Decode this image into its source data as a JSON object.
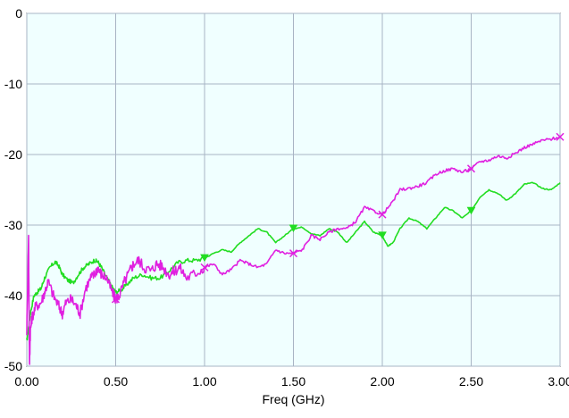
{
  "chart_data": {
    "type": "line",
    "title": "",
    "xlabel": "Freq (GHz)",
    "ylabel": "",
    "xlim": [
      0,
      3.0
    ],
    "ylim": [
      -50,
      0
    ],
    "x_ticks": [
      0,
      0.5,
      1.0,
      1.5,
      2.0,
      2.5,
      3.0
    ],
    "x_tick_labels": [
      "0.00",
      "0.50",
      "1.00",
      "1.50",
      "2.00",
      "2.50",
      "3.00"
    ],
    "y_ticks": [
      0,
      -10,
      -20,
      -30,
      -40,
      -50
    ],
    "y_tick_labels": [
      "0",
      "-10",
      "-20",
      "-30",
      "-40",
      "-50"
    ],
    "grid": true,
    "plot_background": "#f0ffff",
    "grid_color": "#a8b4c4",
    "series": [
      {
        "color": "#22dd22",
        "marker": "triangle-down",
        "marker_x": [
          1.0,
          1.5,
          2.0,
          2.5
        ],
        "x": [
          0.0,
          0.01,
          0.02,
          0.04,
          0.06,
          0.08,
          0.1,
          0.13,
          0.16,
          0.18,
          0.2,
          0.23,
          0.26,
          0.29,
          0.32,
          0.35,
          0.38,
          0.4,
          0.42,
          0.45,
          0.48,
          0.5,
          0.53,
          0.56,
          0.6,
          0.65,
          0.7,
          0.75,
          0.8,
          0.85,
          0.9,
          0.95,
          1.0,
          1.05,
          1.1,
          1.15,
          1.2,
          1.25,
          1.3,
          1.35,
          1.4,
          1.45,
          1.5,
          1.55,
          1.6,
          1.65,
          1.7,
          1.75,
          1.8,
          1.85,
          1.9,
          1.95,
          2.0,
          2.03,
          2.06,
          2.1,
          2.15,
          2.2,
          2.25,
          2.3,
          2.35,
          2.4,
          2.45,
          2.5,
          2.55,
          2.6,
          2.65,
          2.7,
          2.75,
          2.8,
          2.85,
          2.9,
          2.95,
          3.0
        ],
        "y": [
          -46.5,
          -44.5,
          -42.5,
          -40.0,
          -39.5,
          -39.0,
          -37.5,
          -36.0,
          -35.2,
          -35.8,
          -37.0,
          -37.8,
          -38.2,
          -37.0,
          -36.0,
          -35.5,
          -35.0,
          -35.2,
          -36.0,
          -37.5,
          -38.8,
          -39.5,
          -39.2,
          -38.5,
          -37.5,
          -37.0,
          -37.5,
          -37.5,
          -36.5,
          -35.3,
          -35.0,
          -35.0,
          -34.7,
          -34.0,
          -33.5,
          -33.8,
          -32.5,
          -31.5,
          -30.5,
          -31.0,
          -32.5,
          -31.5,
          -30.5,
          -30.3,
          -31.2,
          -31.5,
          -30.5,
          -31.0,
          -32.5,
          -31.0,
          -29.5,
          -31.0,
          -31.5,
          -33.0,
          -32.5,
          -30.5,
          -29.0,
          -29.5,
          -30.5,
          -29.0,
          -27.5,
          -28.0,
          -29.0,
          -28.0,
          -26.0,
          -25.0,
          -25.5,
          -26.5,
          -25.5,
          -24.2,
          -24.0,
          -24.8,
          -25.0,
          -24.0
        ]
      },
      {
        "color": "#e020e0",
        "marker": "x",
        "marker_x": [
          0.5,
          1.0,
          1.5,
          2.0,
          2.5,
          3.0
        ],
        "x": [
          0.0,
          0.01,
          0.015,
          0.02,
          0.03,
          0.05,
          0.08,
          0.1,
          0.12,
          0.15,
          0.18,
          0.2,
          0.22,
          0.25,
          0.28,
          0.3,
          0.33,
          0.36,
          0.38,
          0.4,
          0.42,
          0.45,
          0.48,
          0.5,
          0.52,
          0.55,
          0.58,
          0.6,
          0.63,
          0.66,
          0.7,
          0.73,
          0.76,
          0.8,
          0.83,
          0.86,
          0.9,
          0.95,
          1.0,
          1.05,
          1.1,
          1.15,
          1.2,
          1.25,
          1.3,
          1.35,
          1.4,
          1.45,
          1.5,
          1.55,
          1.6,
          1.65,
          1.7,
          1.75,
          1.8,
          1.85,
          1.9,
          1.95,
          2.0,
          2.05,
          2.1,
          2.15,
          2.2,
          2.25,
          2.3,
          2.35,
          2.4,
          2.45,
          2.5,
          2.55,
          2.6,
          2.65,
          2.7,
          2.75,
          2.8,
          2.85,
          2.9,
          2.95,
          3.0
        ],
        "y": [
          -45.0,
          -31.5,
          -50.0,
          -45.0,
          -43.0,
          -41.5,
          -41.0,
          -39.5,
          -38.0,
          -40.0,
          -41.5,
          -42.5,
          -41.0,
          -40.5,
          -41.5,
          -42.5,
          -39.0,
          -37.5,
          -37.0,
          -36.0,
          -37.0,
          -37.5,
          -39.5,
          -40.5,
          -40.0,
          -38.0,
          -36.5,
          -35.5,
          -35.0,
          -36.0,
          -36.5,
          -35.5,
          -35.8,
          -37.0,
          -36.5,
          -36.0,
          -37.5,
          -36.8,
          -36.0,
          -35.5,
          -37.0,
          -36.3,
          -35.0,
          -35.5,
          -36.0,
          -35.5,
          -33.5,
          -34.0,
          -34.0,
          -33.5,
          -31.5,
          -32.0,
          -31.0,
          -30.5,
          -30.5,
          -29.5,
          -27.5,
          -28.0,
          -28.5,
          -27.0,
          -25.0,
          -24.8,
          -24.5,
          -24.0,
          -22.8,
          -22.3,
          -22.0,
          -22.5,
          -22.0,
          -21.0,
          -20.8,
          -20.2,
          -20.5,
          -19.8,
          -19.0,
          -18.5,
          -18.0,
          -17.8,
          -17.5
        ]
      }
    ]
  }
}
